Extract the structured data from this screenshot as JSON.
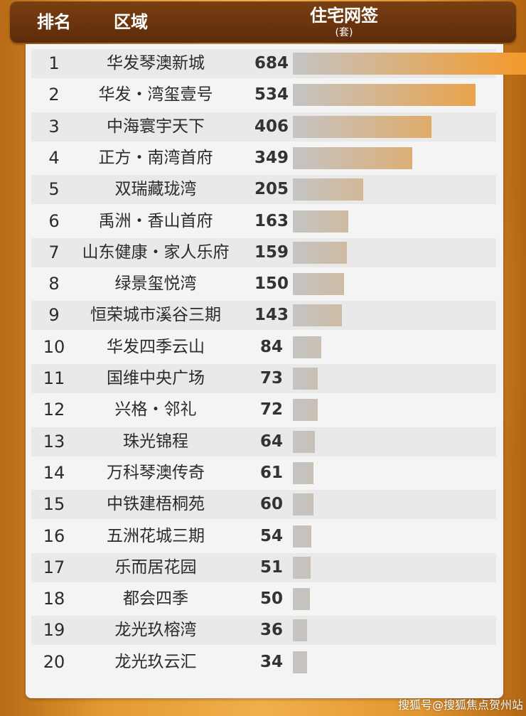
{
  "header": {
    "rank_label": "排名",
    "area_label": "区域",
    "sales_label": "住宅网签",
    "unit_label": "(套)"
  },
  "colors": {
    "bar_start": "#c4c4c4",
    "bar_end": "#f39a2a",
    "header_bg": "#6b350e",
    "page_bg": "#e39a33"
  },
  "chart_data": {
    "type": "bar",
    "orientation": "horizontal",
    "categories": [
      "华发琴澳新城",
      "华发・湾玺壹号",
      "中海寰宇天下",
      "正方・南湾首府",
      "双瑞藏珑湾",
      "禹洲・香山首府",
      "山东健康・家人乐府",
      "绿景玺悦湾",
      "恒荣城市溪谷三期",
      "华发四季云山",
      "国维中央广场",
      "兴格・邻礼",
      "珠光锦程",
      "万科琴澳传奇",
      "中铁建梧桐苑",
      "五洲花城三期",
      "乐而居花园",
      "都会四季",
      "龙光玖榕湾",
      "龙光玖云汇"
    ],
    "ranks": [
      "1",
      "2",
      "3",
      "4",
      "5",
      "6",
      "7",
      "8",
      "9",
      "10",
      "11",
      "12",
      "13",
      "14",
      "15",
      "16",
      "17",
      "18",
      "19",
      "20"
    ],
    "values": [
      684,
      534,
      406,
      349,
      205,
      163,
      159,
      150,
      143,
      84,
      73,
      72,
      64,
      61,
      60,
      54,
      51,
      50,
      36,
      34
    ],
    "grid": false,
    "legend": "none"
  },
  "watermark": "搜狐号@搜狐焦点贺州站"
}
